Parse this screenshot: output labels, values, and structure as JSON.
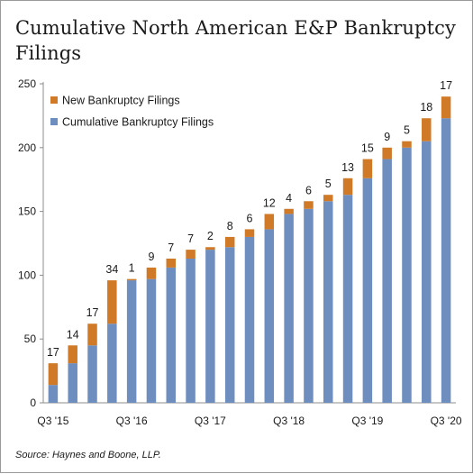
{
  "chart_data": {
    "type": "bar",
    "stacked": true,
    "title": "Cumulative North American E&P Bankruptcy Filings",
    "source": "Source: Haynes and Boone, LLP.",
    "ylim": [
      0,
      250
    ],
    "yticks": [
      0,
      50,
      100,
      150,
      200,
      250
    ],
    "x_tick_labels": [
      {
        "index": 0,
        "label": "Q3 '15"
      },
      {
        "index": 4,
        "label": "Q3 '16"
      },
      {
        "index": 8,
        "label": "Q3 '17"
      },
      {
        "index": 12,
        "label": "Q3 '18"
      },
      {
        "index": 16,
        "label": "Q3 '19"
      },
      {
        "index": 20,
        "label": "Q3 '20"
      }
    ],
    "grid": false,
    "legend_position": "top-left",
    "series": [
      {
        "name": "New Bankruptcy Filings",
        "color": "#D07A28",
        "values": [
          17,
          14,
          17,
          34,
          1,
          9,
          7,
          7,
          2,
          8,
          6,
          12,
          4,
          6,
          5,
          13,
          15,
          9,
          5,
          18,
          17
        ]
      },
      {
        "name": "Cumulative Bankruptcy Filings",
        "color": "#6E8EBF",
        "values": [
          14,
          31,
          45,
          62,
          96,
          97,
          106,
          113,
          120,
          122,
          130,
          136,
          148,
          152,
          158,
          163,
          176,
          191,
          200,
          205,
          223
        ]
      }
    ],
    "data_labels": [
      17,
      14,
      17,
      34,
      1,
      9,
      7,
      7,
      2,
      8,
      6,
      12,
      4,
      6,
      5,
      13,
      15,
      9,
      5,
      18,
      17
    ]
  }
}
